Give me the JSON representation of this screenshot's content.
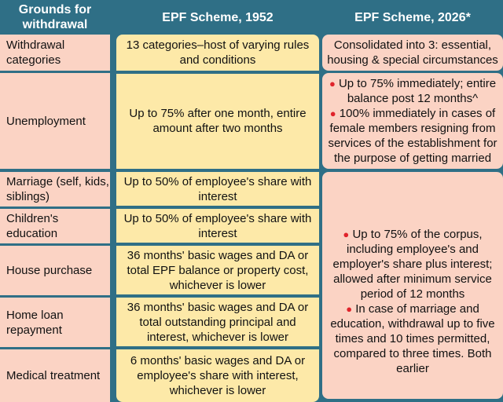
{
  "headers": {
    "grounds": "Grounds for withdrawal",
    "epf1952": "EPF Scheme, 1952",
    "epf2026": "EPF Scheme, 2026*"
  },
  "rows": [
    {
      "ground": "Withdrawal categories",
      "old": "13 categories–host of varying rules and conditions"
    },
    {
      "ground": "Unemployment",
      "old": "Up to 75% after one month, entire amount after two months"
    },
    {
      "ground": "Marriage (self, kids, siblings)",
      "old": "Up to 50% of employee's share with interest"
    },
    {
      "ground": "Children's education",
      "old": "Up to 50% of employee's share with interest"
    },
    {
      "ground": "House purchase",
      "old": "36 months' basic wages and DA or total EPF balance or property cost, whichever is lower"
    },
    {
      "ground": "Home loan repayment",
      "old": "36 months' basic wages and DA or total outstanding principal and interest, whichever is lower"
    },
    {
      "ground": "Medical treatment",
      "old": "6 months' basic wages and DA or employee's share with interest, whichever is lower"
    }
  ],
  "new_scheme": {
    "categories": "Consolidated into 3: essential, housing & special circumstances",
    "unemployment": [
      "Up to 75% immediately; entire balance post 12 months^",
      "100% immediately in cases of female members resigning from services of the establishment for the purpose of getting married"
    ],
    "others": [
      "Up to 75% of the corpus, including employee's and employer's share plus interest; allowed after minimum service period of 12 months",
      "In case of marriage and education, withdrawal up to five times and 10 times permitted, compared to three times. Both earlier"
    ]
  },
  "colors": {
    "background": "#2f6f86",
    "left_cells": "#fbd3c4",
    "middle_column": "#fde9a8",
    "right_cells": "#fbd3c4",
    "bullet": "#e0232b"
  }
}
